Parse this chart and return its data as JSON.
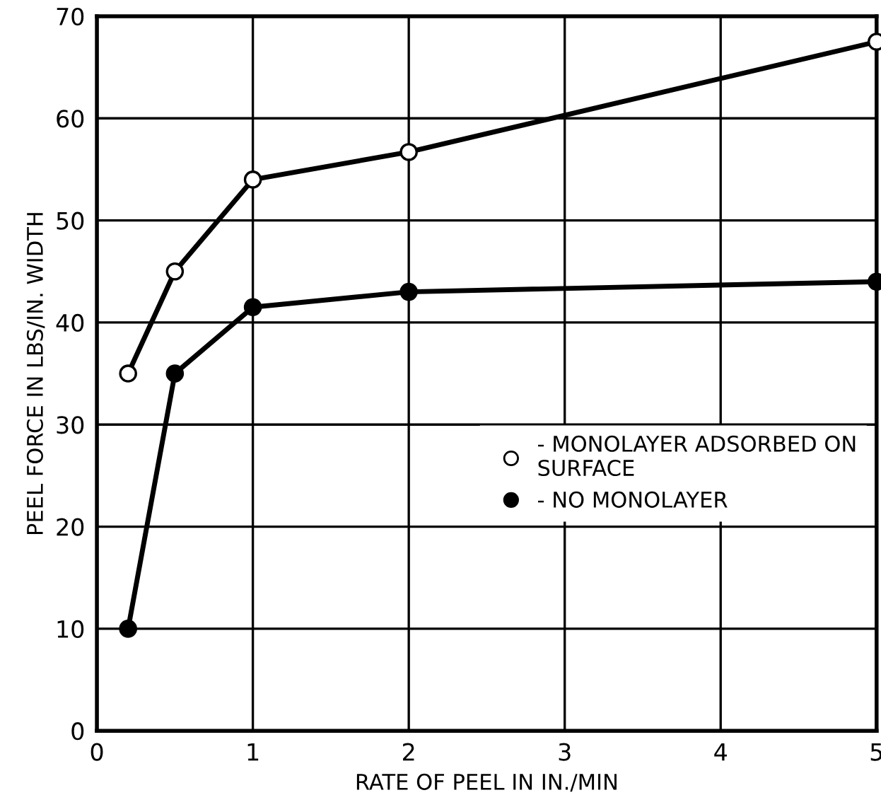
{
  "chart_data": {
    "type": "line",
    "xlabel": "RATE OF PEEL IN IN./MIN",
    "ylabel": "PEEL FORCE IN LBS/IN. WIDTH",
    "x": [
      0.2,
      0.5,
      1,
      2,
      5
    ],
    "series": [
      {
        "name": "- MONOLAYER ADSORBED ON\nSURFACE",
        "color": "#000000",
        "marker": "circle",
        "values": [
          35,
          45,
          54,
          56.7,
          67.5
        ]
      },
      {
        "name": "- NO MONOLAYER",
        "color": "#000000",
        "marker": "circle",
        "values": [
          10,
          35,
          41.5,
          43,
          44
        ]
      }
    ],
    "xlim": [
      0,
      5
    ],
    "xticks": [
      0,
      1,
      2,
      3,
      4,
      5
    ],
    "ylim": [
      0,
      70
    ],
    "yticks": [
      0,
      10,
      20,
      30,
      40,
      50,
      60,
      70
    ],
    "grid": true,
    "legend": "right",
    "line_style": "solid"
  }
}
